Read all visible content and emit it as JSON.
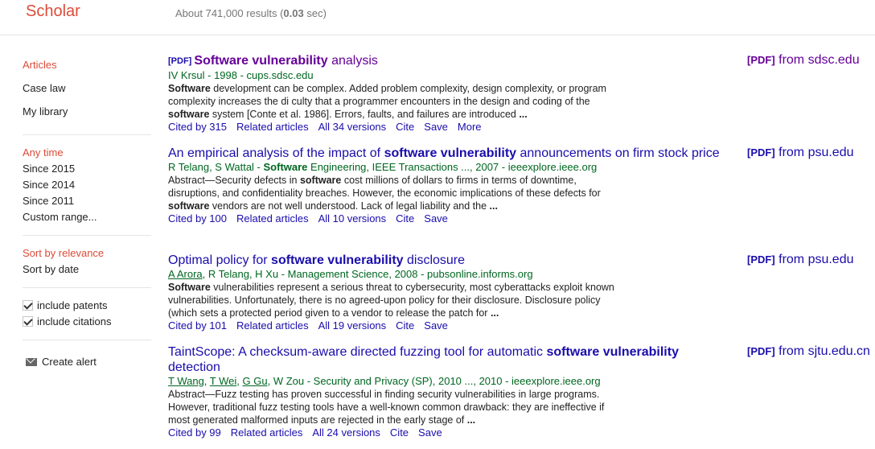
{
  "header": {
    "logo": "Scholar",
    "result_prefix": "About 741,000 results (",
    "result_time": "0.03",
    "result_suffix": " sec)"
  },
  "sidebar": {
    "types": [
      "Articles",
      "Case law",
      "My library"
    ],
    "time": [
      "Any time",
      "Since 2015",
      "Since 2014",
      "Since 2011",
      "Custom range..."
    ],
    "sort": [
      "Sort by relevance",
      "Sort by date"
    ],
    "checks": [
      "include patents",
      "include citations"
    ],
    "alert": "Create alert"
  },
  "results": [
    {
      "tag": "[PDF]",
      "title_parts": [
        [
          "b",
          "Software vulnerability"
        ],
        [
          "t",
          " analysis"
        ]
      ],
      "authors_html": "IV Krsul - 1998 - cups.sdsc.edu",
      "snippet_parts": [
        [
          "b",
          "Software"
        ],
        [
          "t",
          " development can be complex. Added problem complexity, design complexity, or program complexity increases the di culty that a programmer encounters in the design and coding of the "
        ],
        [
          "b",
          "software"
        ],
        [
          "t",
          " system [Conte et al. 1986]. Errors, faults, and failures are introduced "
        ],
        [
          "b",
          "..."
        ]
      ],
      "links": [
        "Cited by 315",
        "Related articles",
        "All 34 versions",
        "Cite",
        "Save",
        "More"
      ],
      "side_tag": "[PDF]",
      "side_text": " from sdsc.edu"
    },
    {
      "tag": "",
      "title_parts": [
        [
          "t",
          "An empirical analysis of the impact of "
        ],
        [
          "b",
          "software vulnerability"
        ],
        [
          "t",
          " announcements on firm stock price"
        ]
      ],
      "authors_html": "R Telang, S Wattal - <b>Software</b> Engineering, IEEE Transactions ..., 2007 - ieeexplore.ieee.org",
      "snippet_parts": [
        [
          "t",
          "Abstract—Security defects in "
        ],
        [
          "b",
          "software"
        ],
        [
          "t",
          " cost millions of dollars to firms in terms of downtime, disruptions, and confidentiality breaches. However, the economic implications of these defects for "
        ],
        [
          "b",
          "software"
        ],
        [
          "t",
          " vendors are not well understood. Lack of legal liability and the "
        ],
        [
          "b",
          "..."
        ]
      ],
      "links": [
        "Cited by 100",
        "Related articles",
        "All 10 versions",
        "Cite",
        "Save"
      ],
      "side_tag": "[PDF]",
      "side_text": " from psu.edu"
    },
    {
      "tag": "",
      "title_parts": [
        [
          "t",
          "Optimal policy for "
        ],
        [
          "b",
          "software vulnerability"
        ],
        [
          "t",
          " disclosure"
        ]
      ],
      "authors_html": "<u>A Arora</u>, R Telang, H Xu - Management Science, 2008 - pubsonline.informs.org",
      "snippet_parts": [
        [
          "b",
          "Software"
        ],
        [
          "t",
          " vulnerabilities represent a serious threat to cybersecurity, most cyberattacks exploit known vulnerabilities. Unfortunately, there is no agreed-upon policy for their disclosure. Disclosure policy (which sets a protected period given to a vendor to release the patch for "
        ],
        [
          "b",
          "..."
        ]
      ],
      "links": [
        "Cited by 101",
        "Related articles",
        "All 19 versions",
        "Cite",
        "Save"
      ],
      "side_tag": "[PDF]",
      "side_text": " from psu.edu"
    },
    {
      "tag": "",
      "title_parts": [
        [
          "t",
          "TaintScope: A checksum-aware directed fuzzing tool for automatic "
        ],
        [
          "b",
          "software vulnerability"
        ],
        [
          "t",
          " detection"
        ]
      ],
      "authors_html": "<u>T Wang</u>, <u>T Wei</u>, <u>G Gu</u>, W Zou - Security and Privacy (SP), 2010 ..., 2010 - ieeexplore.ieee.org",
      "snippet_parts": [
        [
          "t",
          "Abstract—Fuzz testing has proven successful in finding security vulnerabilities in large programs. However, traditional fuzz testing tools have a well-known common drawback: they are ineffective if most generated malformed inputs are rejected in the early stage of "
        ],
        [
          "b",
          "..."
        ]
      ],
      "links": [
        "Cited by 99",
        "Related articles",
        "All 24 versions",
        "Cite",
        "Save"
      ],
      "side_tag": "[PDF]",
      "side_text": " from sjtu.edu.cn"
    }
  ]
}
